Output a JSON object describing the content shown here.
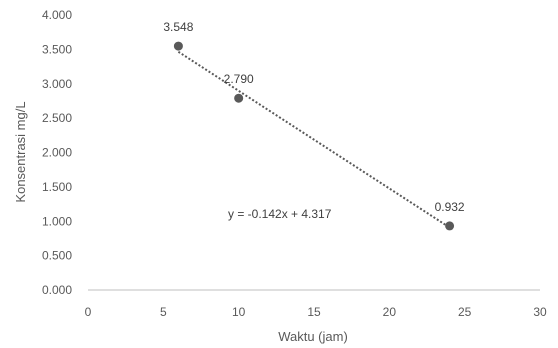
{
  "chart_data": {
    "type": "scatter",
    "title": "",
    "xlabel": "Waktu (jam)",
    "ylabel": "Konsentrasi mg/L",
    "xlim": [
      0,
      30
    ],
    "ylim": [
      0,
      4
    ],
    "xticks": [
      "0",
      "5",
      "10",
      "15",
      "20",
      "25",
      "30"
    ],
    "yticks": [
      "0.000",
      "0.500",
      "1.000",
      "1.500",
      "2.000",
      "2.500",
      "3.000",
      "3.500",
      "4.000"
    ],
    "grid": false,
    "legend": "none",
    "series": [
      {
        "x": [
          6,
          10,
          24
        ],
        "y": [
          3.548,
          2.79,
          0.932
        ],
        "labels": [
          "3.548",
          "2.790",
          "0.932"
        ]
      }
    ],
    "trendline": {
      "type": "linear",
      "slope": -0.142,
      "intercept": 4.317,
      "equation": "y = -0.142x + 4.317",
      "style": "dotted"
    },
    "colors": {
      "marker": "#595959",
      "trendline": "#595959",
      "axis": "#bfbfbf",
      "text": "#595959"
    }
  }
}
